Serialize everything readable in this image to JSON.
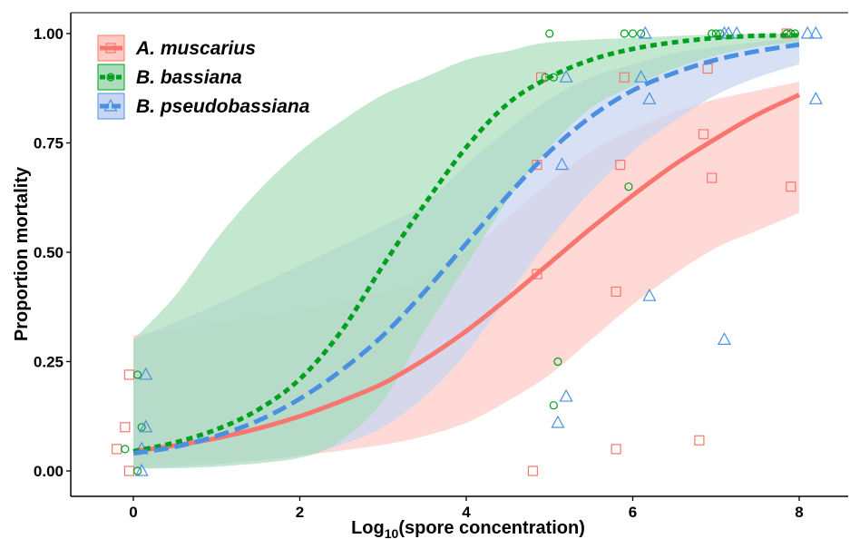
{
  "chart_data": {
    "type": "line",
    "xlabel_main": "Log",
    "xlabel_sub": "10",
    "xlabel_rest": "(spore concentration)",
    "ylabel": "Proportion mortality",
    "xlim": [
      -0.2,
      8.3
    ],
    "ylim": [
      0,
      1
    ],
    "x_ticks": [
      0,
      2,
      4,
      6,
      8
    ],
    "x_tick_labels": [
      "0",
      "2",
      "4",
      "6",
      "8"
    ],
    "y_ticks": [
      0,
      0.25,
      0.5,
      0.75,
      1
    ],
    "y_tick_labels": [
      "0.00",
      "0.25",
      "0.50",
      "0.75",
      "1.00"
    ],
    "grid": false,
    "legend_position": "top-left",
    "series": [
      {
        "name": "A. muscarius",
        "color": "#f8766d",
        "band_color": "#ffc9c4",
        "line_style": "solid",
        "marker": "square",
        "curve": [
          [
            0,
            0.045
          ],
          [
            0.5,
            0.058
          ],
          [
            1,
            0.075
          ],
          [
            1.5,
            0.097
          ],
          [
            2,
            0.125
          ],
          [
            2.5,
            0.16
          ],
          [
            3,
            0.2
          ],
          [
            3.5,
            0.255
          ],
          [
            4,
            0.32
          ],
          [
            4.5,
            0.395
          ],
          [
            5,
            0.475
          ],
          [
            5.5,
            0.555
          ],
          [
            6,
            0.63
          ],
          [
            6.5,
            0.7
          ],
          [
            7,
            0.76
          ],
          [
            7.5,
            0.815
          ],
          [
            8,
            0.86
          ]
        ],
        "ci_lower": [
          [
            0,
            0.01
          ],
          [
            1,
            0.02
          ],
          [
            2,
            0.035
          ],
          [
            3,
            0.06
          ],
          [
            3.5,
            0.08
          ],
          [
            4,
            0.11
          ],
          [
            4.5,
            0.16
          ],
          [
            5,
            0.22
          ],
          [
            5.5,
            0.3
          ],
          [
            6,
            0.38
          ],
          [
            6.5,
            0.45
          ],
          [
            7,
            0.51
          ],
          [
            7.5,
            0.55
          ],
          [
            8,
            0.59
          ]
        ],
        "ci_upper": [
          [
            0,
            0.31
          ],
          [
            1,
            0.34
          ],
          [
            2,
            0.37
          ],
          [
            3,
            0.41
          ],
          [
            3.5,
            0.44
          ],
          [
            4,
            0.5
          ],
          [
            4.5,
            0.58
          ],
          [
            5,
            0.66
          ],
          [
            5.5,
            0.73
          ],
          [
            6,
            0.78
          ],
          [
            6.5,
            0.82
          ],
          [
            7,
            0.85
          ],
          [
            7.5,
            0.87
          ],
          [
            8,
            0.89
          ]
        ],
        "points": [
          [
            -0.2,
            0.05
          ],
          [
            -0.1,
            0.1
          ],
          [
            -0.05,
            0.22
          ],
          [
            -0.05,
            0
          ],
          [
            4.8,
            0
          ],
          [
            4.85,
            0.45
          ],
          [
            4.85,
            0.7
          ],
          [
            4.9,
            0.9
          ],
          [
            5.8,
            0.41
          ],
          [
            5.8,
            0.05
          ],
          [
            5.85,
            0.7
          ],
          [
            5.9,
            0.9
          ],
          [
            6.8,
            0.07
          ],
          [
            6.85,
            0.77
          ],
          [
            6.9,
            0.92
          ],
          [
            6.95,
            0.67
          ],
          [
            7.9,
            0.65
          ],
          [
            7.85,
            1.0
          ]
        ]
      },
      {
        "name": "B. bassiana",
        "color": "#00a01e",
        "band_color": "#a9ddbb",
        "line_style": "dotted",
        "marker": "circle",
        "curve": [
          [
            0,
            0.045
          ],
          [
            0.5,
            0.065
          ],
          [
            1,
            0.095
          ],
          [
            1.5,
            0.14
          ],
          [
            2,
            0.21
          ],
          [
            2.5,
            0.32
          ],
          [
            3,
            0.47
          ],
          [
            3.5,
            0.61
          ],
          [
            4,
            0.74
          ],
          [
            4.5,
            0.84
          ],
          [
            5,
            0.9
          ],
          [
            5.5,
            0.94
          ],
          [
            6,
            0.965
          ],
          [
            6.5,
            0.98
          ],
          [
            7,
            0.99
          ],
          [
            7.5,
            0.995
          ],
          [
            8,
            0.996
          ]
        ],
        "ci_lower": [
          [
            0,
            0.005
          ],
          [
            1,
            0.01
          ],
          [
            2,
            0.03
          ],
          [
            2.5,
            0.07
          ],
          [
            3,
            0.16
          ],
          [
            3.5,
            0.32
          ],
          [
            4,
            0.47
          ],
          [
            4.5,
            0.62
          ],
          [
            5,
            0.74
          ],
          [
            5.5,
            0.83
          ],
          [
            6,
            0.88
          ],
          [
            6.5,
            0.92
          ],
          [
            7,
            0.95
          ],
          [
            7.5,
            0.97
          ],
          [
            8,
            0.98
          ]
        ],
        "ci_upper": [
          [
            0,
            0.3
          ],
          [
            0.5,
            0.4
          ],
          [
            1,
            0.53
          ],
          [
            1.5,
            0.64
          ],
          [
            2,
            0.73
          ],
          [
            2.5,
            0.8
          ],
          [
            3,
            0.86
          ],
          [
            3.5,
            0.9
          ],
          [
            4,
            0.94
          ],
          [
            4.5,
            0.96
          ],
          [
            5,
            0.98
          ],
          [
            6,
            0.99
          ],
          [
            7,
            0.998
          ],
          [
            8,
            1.0
          ]
        ],
        "points": [
          [
            -0.1,
            0.05
          ],
          [
            0.05,
            0.22
          ],
          [
            0.05,
            0
          ],
          [
            0.1,
            0.1
          ],
          [
            4.95,
            0.9
          ],
          [
            5.0,
            1.0
          ],
          [
            5.05,
            0.9
          ],
          [
            5.05,
            0.15
          ],
          [
            5.1,
            0.25
          ],
          [
            5.9,
            1.0
          ],
          [
            5.95,
            0.65
          ],
          [
            6.0,
            1.0
          ],
          [
            6.1,
            1.0
          ],
          [
            6.95,
            1.0
          ],
          [
            7.0,
            1.0
          ],
          [
            7.05,
            1.0
          ],
          [
            7.85,
            1.0
          ],
          [
            7.9,
            1.0
          ],
          [
            7.95,
            1.0
          ]
        ]
      },
      {
        "name": "B. pseudobassiana",
        "color": "#4a90e2",
        "band_color": "#c9d6f2",
        "line_style": "dashed",
        "marker": "triangle",
        "curve": [
          [
            0,
            0.04
          ],
          [
            0.5,
            0.055
          ],
          [
            1,
            0.08
          ],
          [
            1.5,
            0.115
          ],
          [
            2,
            0.165
          ],
          [
            2.5,
            0.23
          ],
          [
            3,
            0.31
          ],
          [
            3.5,
            0.41
          ],
          [
            4,
            0.52
          ],
          [
            4.5,
            0.63
          ],
          [
            5,
            0.73
          ],
          [
            5.5,
            0.81
          ],
          [
            6,
            0.87
          ],
          [
            6.5,
            0.91
          ],
          [
            7,
            0.94
          ],
          [
            7.5,
            0.96
          ],
          [
            8,
            0.975
          ]
        ],
        "ci_lower": [
          [
            0,
            0.005
          ],
          [
            1,
            0.015
          ],
          [
            2,
            0.035
          ],
          [
            2.5,
            0.06
          ],
          [
            3,
            0.1
          ],
          [
            3.5,
            0.17
          ],
          [
            4,
            0.27
          ],
          [
            4.5,
            0.4
          ],
          [
            5,
            0.53
          ],
          [
            5.5,
            0.64
          ],
          [
            6,
            0.73
          ],
          [
            6.5,
            0.8
          ],
          [
            7,
            0.86
          ],
          [
            7.5,
            0.9
          ],
          [
            8,
            0.93
          ]
        ],
        "ci_upper": [
          [
            0,
            0.3
          ],
          [
            1,
            0.38
          ],
          [
            2,
            0.47
          ],
          [
            3,
            0.56
          ],
          [
            3.5,
            0.61
          ],
          [
            4,
            0.7
          ],
          [
            4.5,
            0.78
          ],
          [
            5,
            0.85
          ],
          [
            5.5,
            0.9
          ],
          [
            6,
            0.93
          ],
          [
            6.5,
            0.955
          ],
          [
            7,
            0.97
          ],
          [
            7.5,
            0.98
          ],
          [
            8,
            0.99
          ]
        ],
        "points": [
          [
            0.1,
            0.05
          ],
          [
            0.15,
            0.22
          ],
          [
            0.15,
            0.1
          ],
          [
            0.1,
            0
          ],
          [
            5.1,
            0.11
          ],
          [
            5.15,
            0.7
          ],
          [
            5.2,
            0.9
          ],
          [
            5.2,
            0.17
          ],
          [
            6.1,
            0.9
          ],
          [
            6.15,
            1.0
          ],
          [
            6.2,
            0.85
          ],
          [
            6.2,
            0.4
          ],
          [
            7.1,
            0.3
          ],
          [
            7.1,
            1.0
          ],
          [
            7.15,
            1.0
          ],
          [
            7.25,
            1.0
          ],
          [
            8.1,
            1.0
          ],
          [
            8.2,
            1.0
          ],
          [
            8.2,
            0.85
          ]
        ]
      }
    ]
  }
}
